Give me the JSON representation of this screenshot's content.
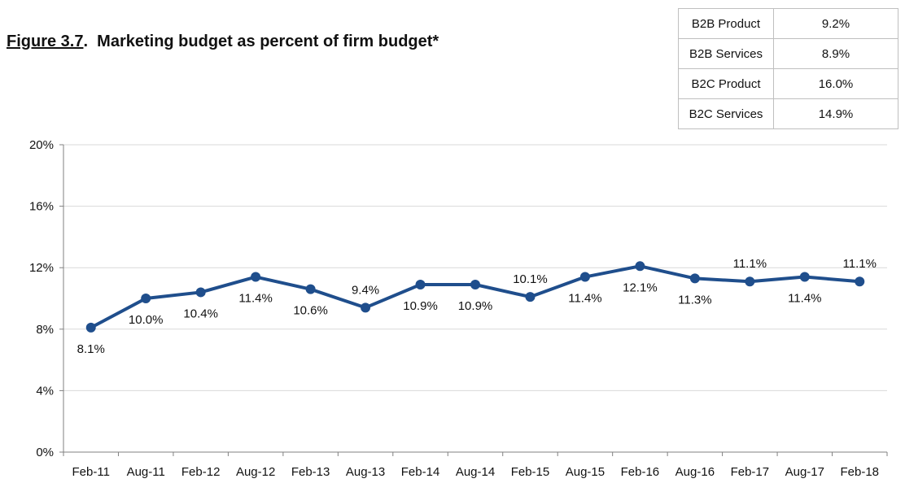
{
  "title": {
    "figure_label": "Figure 3.7",
    "figure_sep": ".",
    "text": "  Marketing budget as percent of firm budget*"
  },
  "summary_table": [
    {
      "label": "B2B Product",
      "value": "9.2%"
    },
    {
      "label": "B2B Services",
      "value": "8.9%"
    },
    {
      "label": "B2C Product",
      "value": "16.0%"
    },
    {
      "label": "B2C Services",
      "value": "14.9%"
    }
  ],
  "colors": {
    "line": "#1f4e8c",
    "grid": "#d9d9d9",
    "axis": "#808080"
  },
  "chart_data": {
    "type": "line",
    "categories": [
      "Feb-11",
      "Aug-11",
      "Feb-12",
      "Aug-12",
      "Feb-13",
      "Aug-13",
      "Feb-14",
      "Aug-14",
      "Feb-15",
      "Aug-15",
      "Feb-16",
      "Aug-16",
      "Feb-17",
      "Aug-17",
      "Feb-18"
    ],
    "series": [
      {
        "values": [
          8.1,
          10.0,
          10.4,
          11.4,
          10.6,
          9.4,
          10.9,
          10.9,
          10.1,
          11.4,
          12.1,
          11.3,
          11.1,
          11.4,
          11.1
        ],
        "data_labels": [
          "8.1%",
          "10.0%",
          "10.4%",
          "11.4%",
          "10.6%",
          "9.4%",
          "10.9%",
          "10.9%",
          "10.1%",
          "11.4%",
          "12.1%",
          "11.3%",
          "11.1%",
          "11.4%",
          "11.1%"
        ]
      }
    ],
    "yticks": [
      0,
      4,
      8,
      12,
      16,
      20
    ],
    "ytick_labels": [
      "0%",
      "4%",
      "8%",
      "12%",
      "16%",
      "20%"
    ],
    "ylim": [
      0,
      20
    ],
    "grid": true,
    "title": "",
    "xlabel": "",
    "ylabel": ""
  }
}
